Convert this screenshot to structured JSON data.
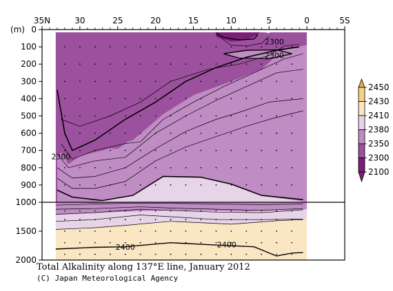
{
  "chart_data": {
    "type": "heatmap",
    "title": "Total Alkalinity along 137°E line, January 2012",
    "credit": "(C) Japan Meteorological Agency",
    "x_axis": {
      "ticks": [
        {
          "value": 35,
          "label": "35N"
        },
        {
          "value": 30,
          "label": "30"
        },
        {
          "value": 25,
          "label": "25"
        },
        {
          "value": 20,
          "label": "20"
        },
        {
          "value": 15,
          "label": "15"
        },
        {
          "value": 10,
          "label": "10"
        },
        {
          "value": 5,
          "label": "5"
        },
        {
          "value": 0,
          "label": "0"
        },
        {
          "value": -5,
          "label": "5S"
        }
      ],
      "range": [
        35,
        -5
      ]
    },
    "y_axis": {
      "unit_label": "(m)",
      "upper_ticks": [
        0,
        100,
        200,
        300,
        400,
        500,
        600,
        700,
        800,
        900,
        1000
      ],
      "lower_ticks": [
        1500,
        2000
      ],
      "range": [
        0,
        2000
      ],
      "scale_break": 1000
    },
    "colorbar": {
      "levels": [
        2450,
        2430,
        2410,
        2380,
        2350,
        2300,
        2100
      ],
      "colors": [
        "#f0a93e",
        "#f8cf8a",
        "#fbe6c4",
        "#e8d4e8",
        "#c08cc4",
        "#9c519e",
        "#7a1e77"
      ]
    },
    "contour_labels": [
      {
        "text": "2300",
        "lat": 4.3,
        "depth": 70
      },
      {
        "text": "2300",
        "lat": 4.3,
        "depth": 150
      },
      {
        "text": "2300",
        "lat": 32.5,
        "depth": 735
      },
      {
        "text": "2400",
        "lat": 24.0,
        "depth": 1775
      },
      {
        "text": "2400",
        "lat": 10.6,
        "depth": 1735
      }
    ],
    "stations_lat": [
      32,
      31,
      30,
      29,
      28,
      27,
      26,
      25,
      24,
      23,
      22,
      21,
      20,
      19,
      18,
      17,
      16,
      15,
      14,
      13,
      12,
      11,
      10,
      9,
      8,
      7,
      6,
      5,
      4,
      3,
      2,
      1
    ]
  }
}
